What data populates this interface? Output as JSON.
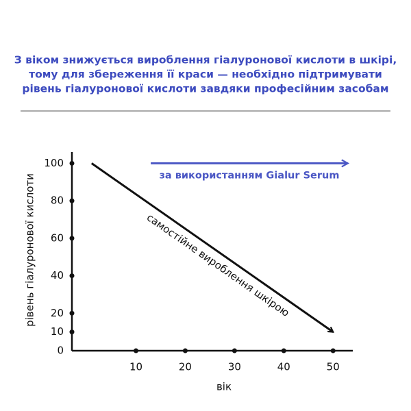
{
  "chart_data": {
    "type": "line",
    "title_lines": [
      "З віком знижується вироблення гіалуронової кислоти в шкірі,",
      "тому для збереження її краси — необхідно підтримувати",
      "рівень гіалуронової кислоти завдяки професійним засобам"
    ],
    "x_label": "вік",
    "y_label": "рівень гіалуронової кислоти",
    "xlim": [
      -3,
      54
    ],
    "xticks": [
      10,
      20,
      30,
      40,
      50
    ],
    "ylim": [
      0,
      106
    ],
    "yticks": [
      0,
      10,
      20,
      40,
      60,
      80,
      100
    ],
    "series": [
      {
        "name": "самостійне вироблення шкірою",
        "color": "#111111",
        "x": [
          1,
          50
        ],
        "values": [
          100,
          10
        ]
      },
      {
        "name": "за використанням Gialur Serum",
        "color": "#4a56c4",
        "x": [
          13,
          53
        ],
        "values": [
          100,
          100
        ]
      }
    ]
  }
}
